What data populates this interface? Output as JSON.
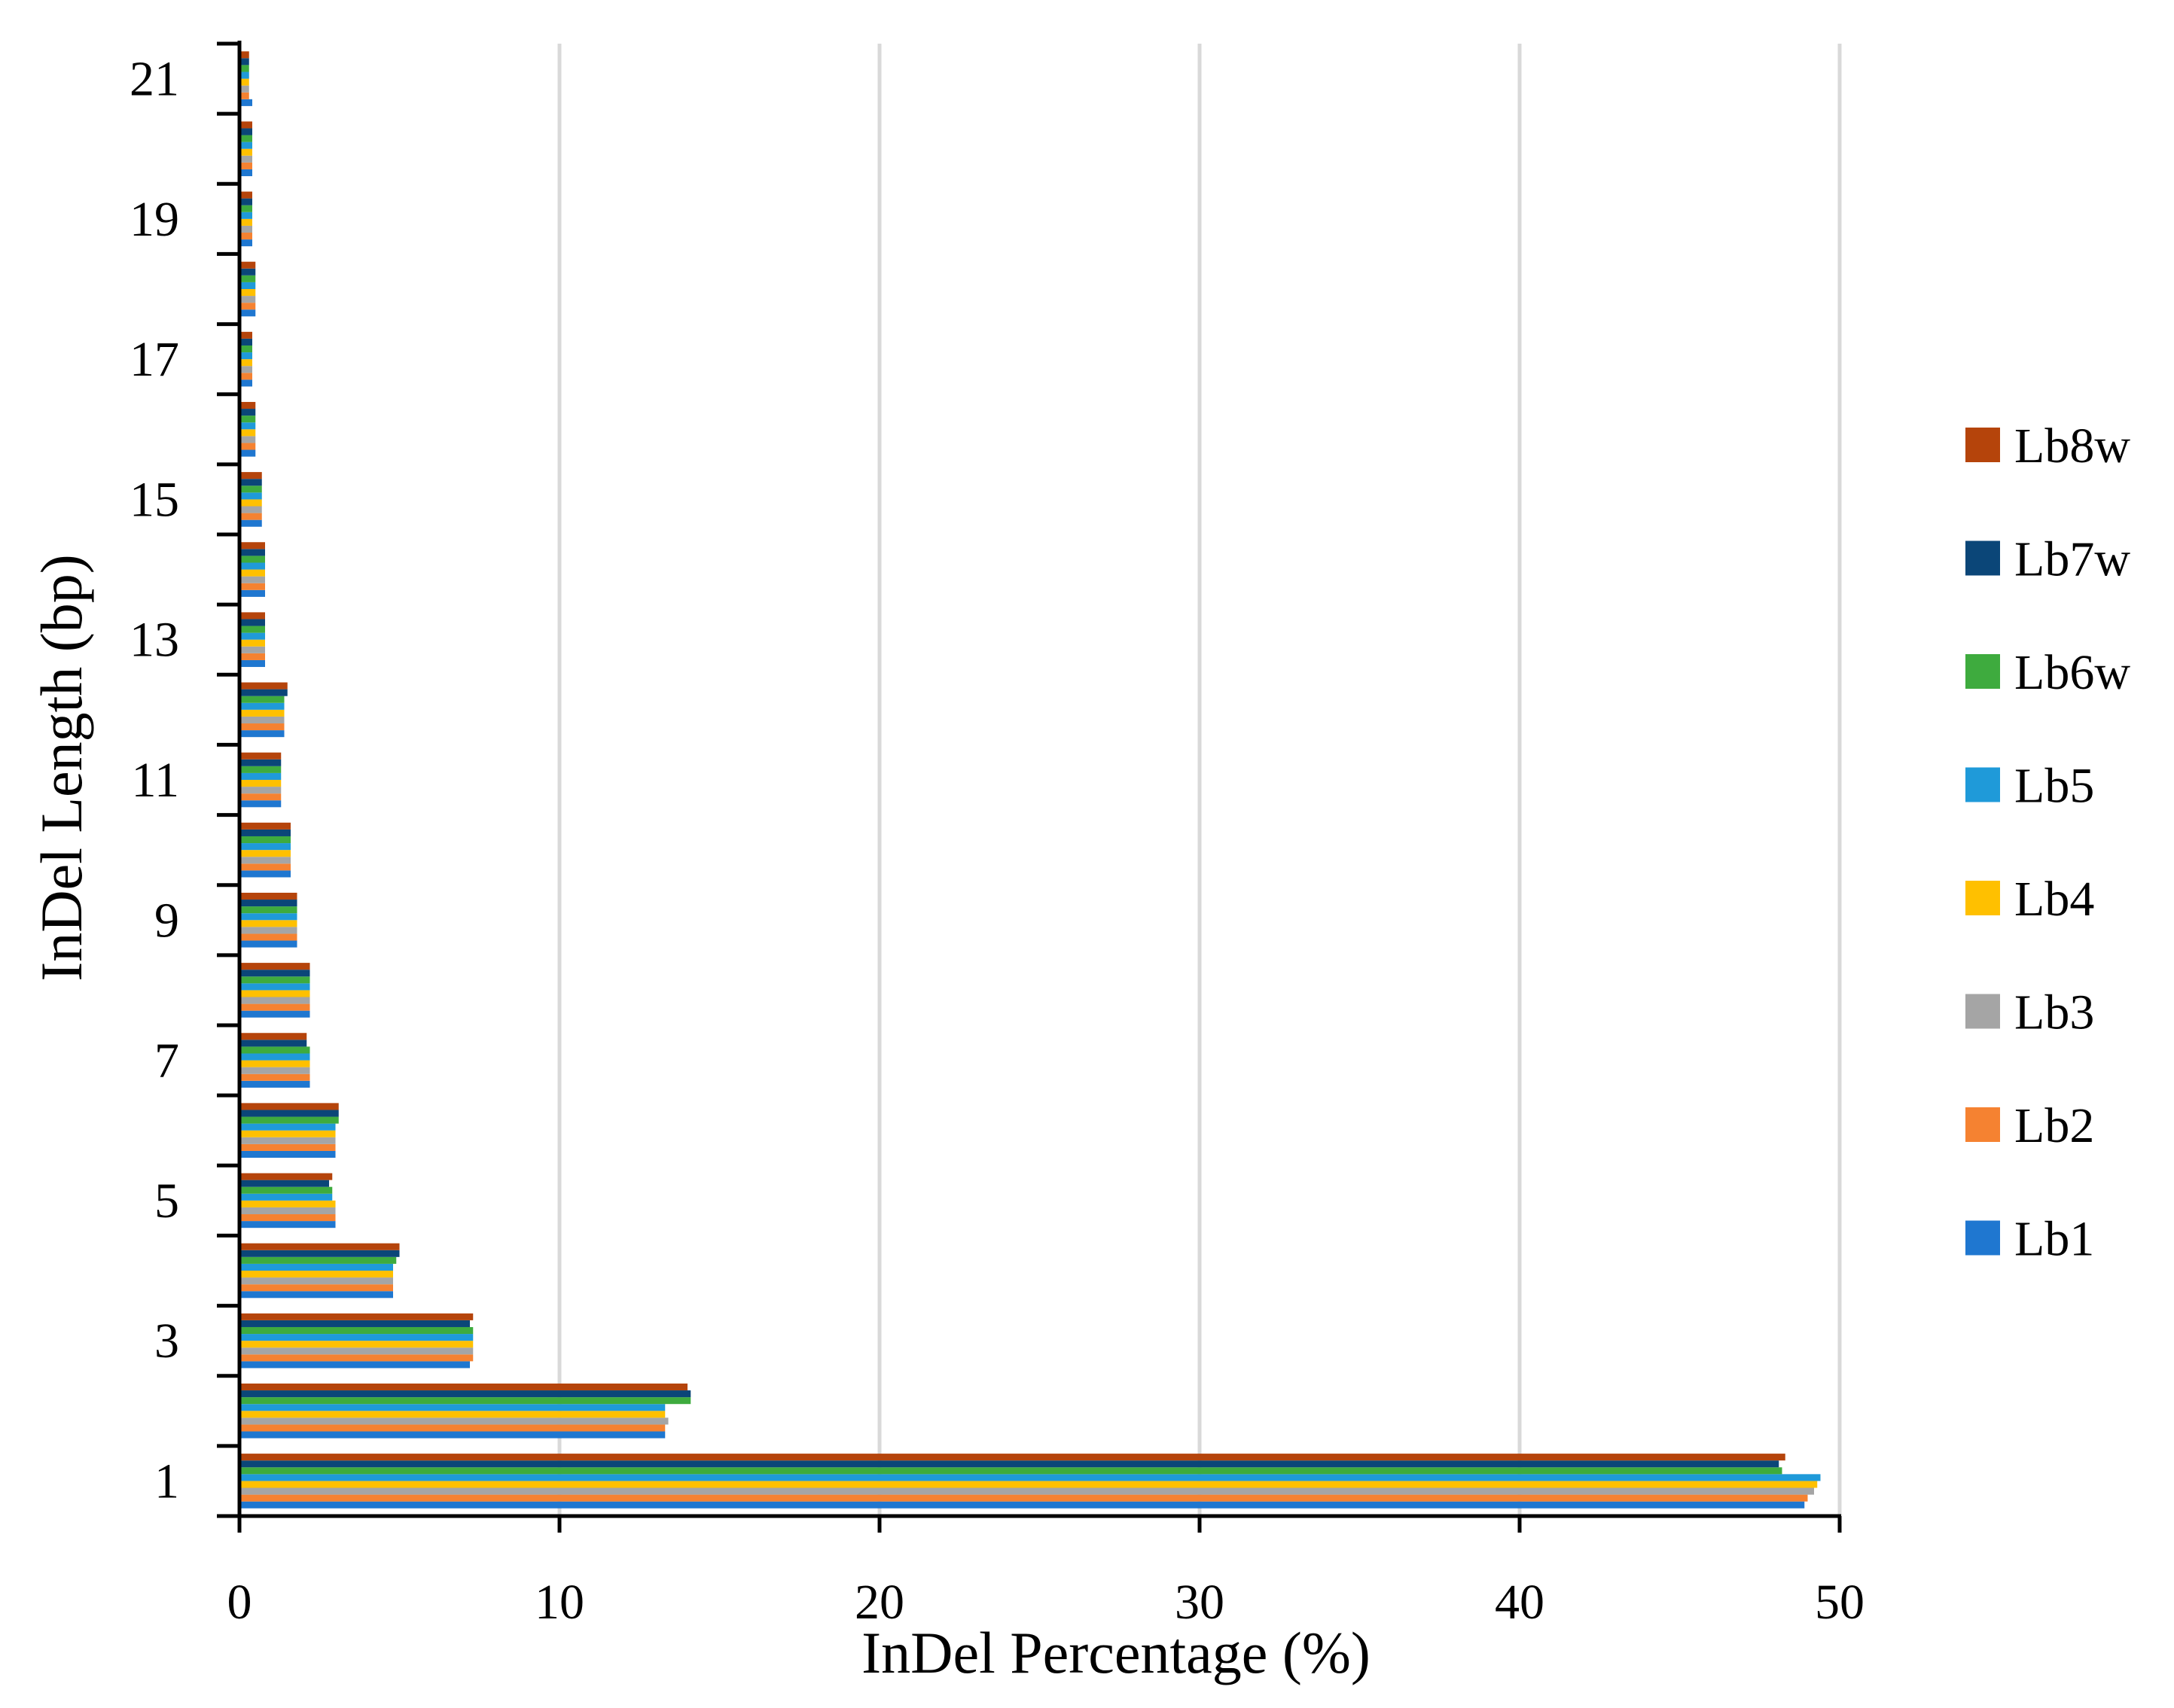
{
  "chart_data": {
    "type": "bar",
    "orientation": "horizontal",
    "title": "",
    "xlabel": "InDel Percentage (%)",
    "ylabel": "InDel Length (bp)",
    "xlim": [
      0,
      50
    ],
    "x_ticks": [
      "0",
      "10",
      "20",
      "30",
      "40",
      "50"
    ],
    "y_tick_labels": [
      "1",
      "3",
      "5",
      "7",
      "9",
      "11",
      "13",
      "15",
      "17",
      "19",
      "21"
    ],
    "grid": "vertical",
    "legend_position": "right",
    "categories": [
      "1",
      "2",
      "3",
      "4",
      "5",
      "6",
      "7",
      "8",
      "9",
      "10",
      "11",
      "12",
      "13",
      "14",
      "15",
      "16",
      "17",
      "18",
      "19",
      "20",
      "21"
    ],
    "series": [
      {
        "name": "Lb1",
        "color": "#1f77d0",
        "values": [
          48.9,
          13.3,
          7.2,
          4.8,
          3.0,
          3.0,
          2.2,
          2.2,
          1.8,
          1.6,
          1.3,
          1.4,
          0.8,
          0.8,
          0.7,
          0.5,
          0.4,
          0.5,
          0.4,
          0.4,
          0.4
        ]
      },
      {
        "name": "Lb2",
        "color": "#f58231",
        "values": [
          49.0,
          13.3,
          7.3,
          4.8,
          3.0,
          3.0,
          2.2,
          2.2,
          1.8,
          1.6,
          1.3,
          1.4,
          0.8,
          0.8,
          0.7,
          0.5,
          0.4,
          0.5,
          0.4,
          0.4,
          0.3
        ]
      },
      {
        "name": "Lb3",
        "color": "#a5a5a5",
        "values": [
          49.2,
          13.4,
          7.3,
          4.8,
          3.0,
          3.0,
          2.2,
          2.2,
          1.8,
          1.6,
          1.3,
          1.4,
          0.8,
          0.8,
          0.7,
          0.5,
          0.4,
          0.5,
          0.4,
          0.4,
          0.3
        ]
      },
      {
        "name": "Lb4",
        "color": "#ffc000",
        "values": [
          49.3,
          13.3,
          7.3,
          4.8,
          3.0,
          3.0,
          2.2,
          2.2,
          1.8,
          1.6,
          1.3,
          1.4,
          0.8,
          0.8,
          0.7,
          0.5,
          0.4,
          0.5,
          0.4,
          0.4,
          0.3
        ]
      },
      {
        "name": "Lb5",
        "color": "#1f9ad9",
        "values": [
          49.4,
          13.3,
          7.3,
          4.8,
          2.9,
          3.0,
          2.2,
          2.2,
          1.8,
          1.6,
          1.3,
          1.4,
          0.8,
          0.8,
          0.7,
          0.5,
          0.4,
          0.5,
          0.4,
          0.4,
          0.3
        ]
      },
      {
        "name": "Lb6w",
        "color": "#3eab3e",
        "values": [
          48.2,
          14.1,
          7.3,
          4.9,
          2.9,
          3.1,
          2.2,
          2.2,
          1.8,
          1.6,
          1.3,
          1.4,
          0.8,
          0.8,
          0.7,
          0.5,
          0.4,
          0.5,
          0.4,
          0.4,
          0.3
        ]
      },
      {
        "name": "Lb7w",
        "color": "#0b4678",
        "values": [
          48.1,
          14.1,
          7.2,
          5.0,
          2.8,
          3.1,
          2.1,
          2.2,
          1.8,
          1.6,
          1.3,
          1.5,
          0.8,
          0.8,
          0.7,
          0.5,
          0.4,
          0.5,
          0.4,
          0.4,
          0.3
        ]
      },
      {
        "name": "Lb8w",
        "color": "#b5440b",
        "values": [
          48.3,
          14.0,
          7.3,
          5.0,
          2.9,
          3.1,
          2.1,
          2.2,
          1.8,
          1.6,
          1.3,
          1.5,
          0.8,
          0.8,
          0.7,
          0.5,
          0.4,
          0.5,
          0.4,
          0.4,
          0.3
        ]
      }
    ],
    "legend_order": [
      "Lb8w",
      "Lb7w",
      "Lb6w",
      "Lb5",
      "Lb4",
      "Lb3",
      "Lb2",
      "Lb1"
    ]
  }
}
